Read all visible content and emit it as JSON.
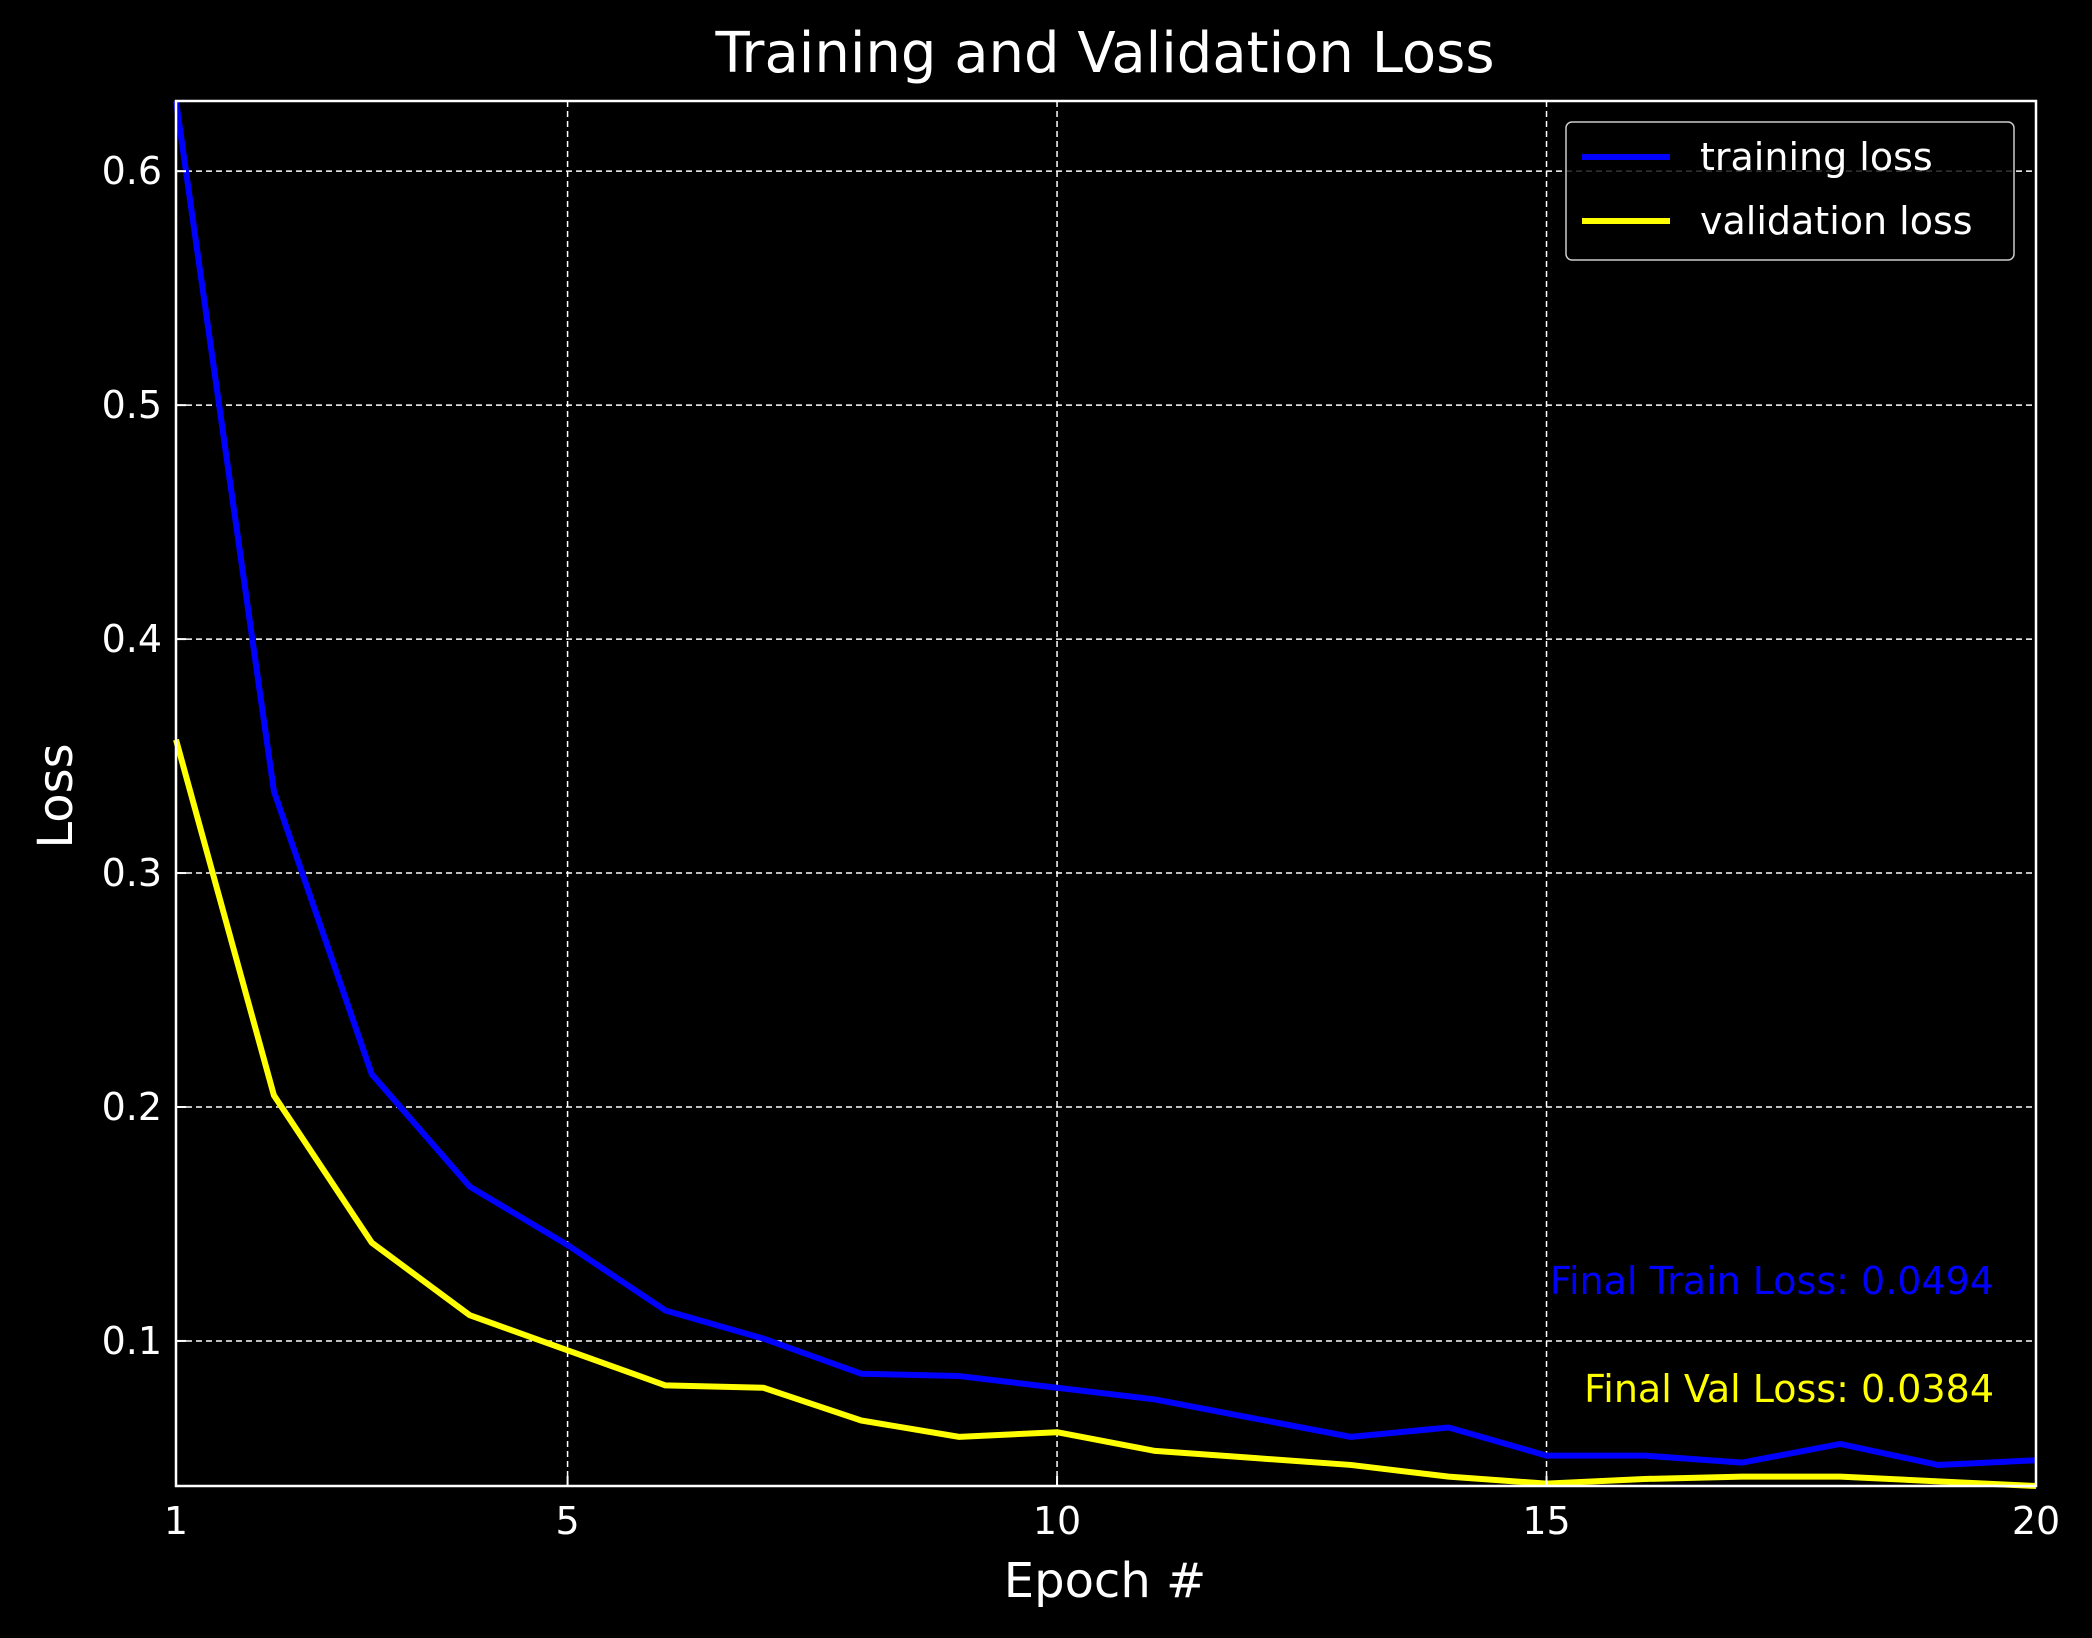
{
  "chart_data": {
    "type": "line",
    "title": "Training and Validation Loss",
    "xlabel": "Epoch #",
    "ylabel": "Loss",
    "xlim": [
      1,
      20
    ],
    "ylim": [
      0.038,
      0.63
    ],
    "xticks": [
      1,
      5,
      10,
      15,
      20
    ],
    "xtick_labels": [
      "1",
      "5",
      "10",
      "15",
      "20"
    ],
    "yticks": [
      0.1,
      0.2,
      0.3,
      0.4,
      0.5,
      0.6
    ],
    "ytick_labels": [
      "0.1",
      "0.2",
      "0.3",
      "0.4",
      "0.5",
      "0.6"
    ],
    "grid": true,
    "legend_position": "top-right",
    "background": "#000000",
    "x": [
      1,
      2,
      3,
      4,
      5,
      6,
      7,
      8,
      9,
      10,
      11,
      12,
      13,
      14,
      15,
      16,
      17,
      18,
      19,
      20
    ],
    "series": [
      {
        "name": "training loss",
        "color": "#0000ff",
        "values": [
          0.63,
          0.335,
          0.214,
          0.166,
          0.141,
          0.113,
          0.101,
          0.086,
          0.085,
          0.08,
          0.075,
          0.067,
          0.059,
          0.063,
          0.051,
          0.051,
          0.048,
          0.056,
          0.047,
          0.049
        ]
      },
      {
        "name": "validation loss",
        "color": "#ffff00",
        "values": [
          0.357,
          0.205,
          0.142,
          0.111,
          0.096,
          0.081,
          0.08,
          0.066,
          0.059,
          0.061,
          0.053,
          0.05,
          0.047,
          0.042,
          0.039,
          0.041,
          0.042,
          0.042,
          0.04,
          0.038
        ]
      }
    ],
    "annotations": [
      {
        "text": "Final Train Loss: 0.0494",
        "color": "#0000ff"
      },
      {
        "text": "Final Val Loss: 0.0384",
        "color": "#ffff00"
      }
    ]
  }
}
